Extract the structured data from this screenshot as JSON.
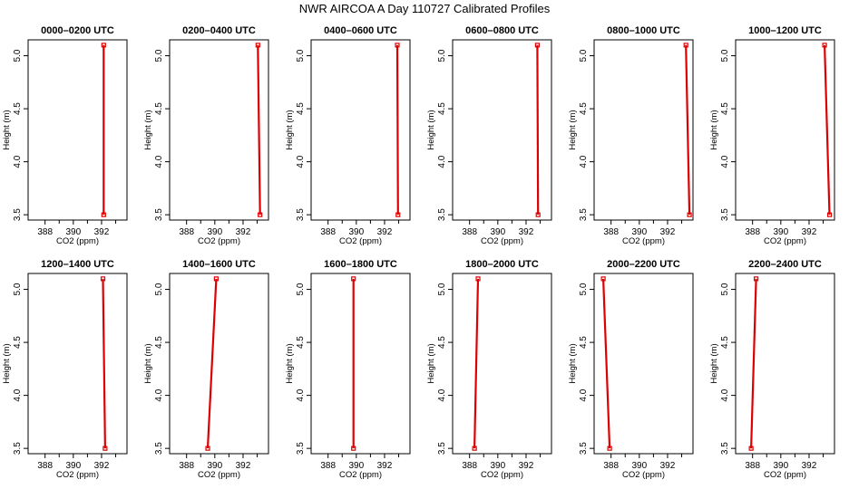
{
  "title": "NWR AIRCOA A  Day 110727  Calibrated Profiles",
  "colors": {
    "series": "#dd0000",
    "axis": "#000000"
  },
  "chart_data": {
    "type": "line",
    "xlabel": "CO2 (ppm)",
    "ylabel": "Height (m)",
    "xlim": [
      386.8,
      393.8
    ],
    "ylim": [
      3.45,
      5.15
    ],
    "xticks": [
      388,
      390,
      392
    ],
    "xtick_labels": [
      "388",
      "390",
      "392"
    ],
    "yticks": [
      3.5,
      4.0,
      4.5,
      5.0
    ],
    "ytick_labels": [
      "3.5",
      "4.0",
      "4.5",
      "5.0"
    ],
    "grid": false,
    "panels": [
      {
        "title": "0000–0200 UTC",
        "x": [
          392.15,
          392.15
        ],
        "y": [
          3.5,
          5.1
        ]
      },
      {
        "title": "0200–0400 UTC",
        "x": [
          393.2,
          393.05
        ],
        "y": [
          3.5,
          5.1
        ]
      },
      {
        "title": "0400–0600 UTC",
        "x": [
          392.95,
          392.9
        ],
        "y": [
          3.5,
          5.1
        ]
      },
      {
        "title": "0600–0800 UTC",
        "x": [
          392.85,
          392.8
        ],
        "y": [
          3.5,
          5.1
        ]
      },
      {
        "title": "0800–1000 UTC",
        "x": [
          393.55,
          393.3
        ],
        "y": [
          3.5,
          5.1
        ]
      },
      {
        "title": "1000–1200 UTC",
        "x": [
          393.45,
          393.1
        ],
        "y": [
          3.5,
          5.1
        ]
      },
      {
        "title": "1200–1400 UTC",
        "x": [
          392.25,
          392.1
        ],
        "y": [
          3.5,
          5.1
        ]
      },
      {
        "title": "1400–1600 UTC",
        "x": [
          389.5,
          390.1
        ],
        "y": [
          3.5,
          5.1
        ]
      },
      {
        "title": "1600–1800 UTC",
        "x": [
          389.8,
          389.8
        ],
        "y": [
          3.5,
          5.1
        ]
      },
      {
        "title": "1800–2000 UTC",
        "x": [
          388.35,
          388.6
        ],
        "y": [
          3.5,
          5.1
        ]
      },
      {
        "title": "2000–2200 UTC",
        "x": [
          387.9,
          387.45
        ],
        "y": [
          3.5,
          5.1
        ]
      },
      {
        "title": "2200–2400 UTC",
        "x": [
          387.9,
          388.25
        ],
        "y": [
          3.5,
          5.1
        ]
      }
    ]
  }
}
